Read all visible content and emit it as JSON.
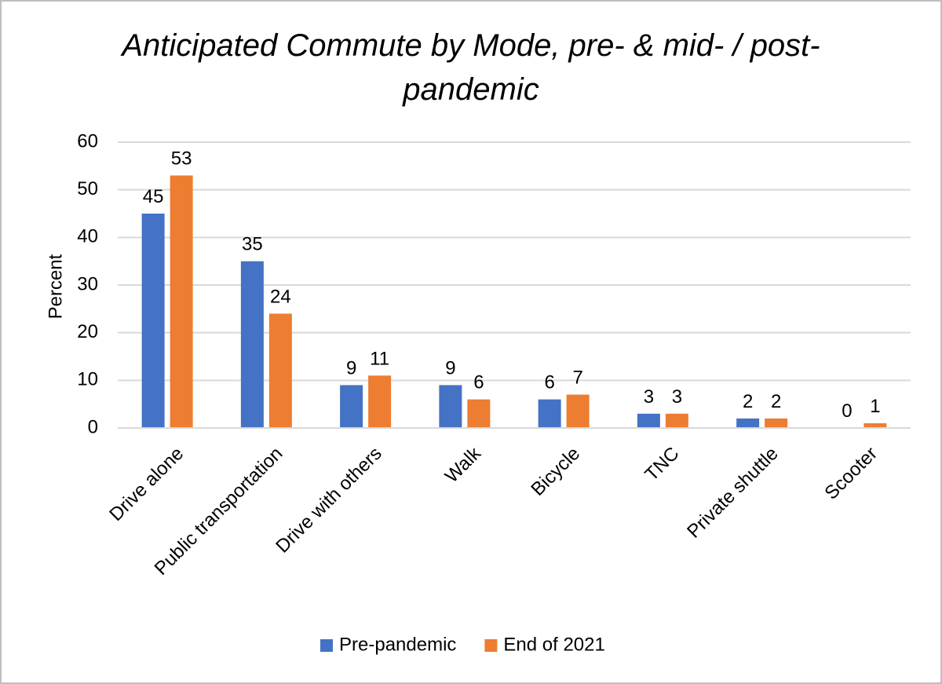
{
  "chart_data": {
    "type": "bar",
    "title": "Anticipated Commute by Mode, pre- & mid- / post- pandemic",
    "y_label": "Percent",
    "categories": [
      "Drive alone",
      "Public transportation",
      "Drive with others",
      "Walk",
      "Bicycle",
      "TNC",
      "Private shuttle",
      "Scooter"
    ],
    "series": [
      {
        "name": "Pre-pandemic",
        "color": "#4472c4",
        "values": [
          45,
          35,
          9,
          9,
          6,
          3,
          2,
          0
        ]
      },
      {
        "name": "End of 2021",
        "color": "#ed7d31",
        "values": [
          53,
          24,
          11,
          6,
          7,
          3,
          2,
          1
        ]
      }
    ],
    "ylim": [
      0,
      60
    ],
    "yticks": [
      0,
      10,
      20,
      30,
      40,
      50,
      60
    ],
    "grid": true,
    "legend": "bottom"
  }
}
